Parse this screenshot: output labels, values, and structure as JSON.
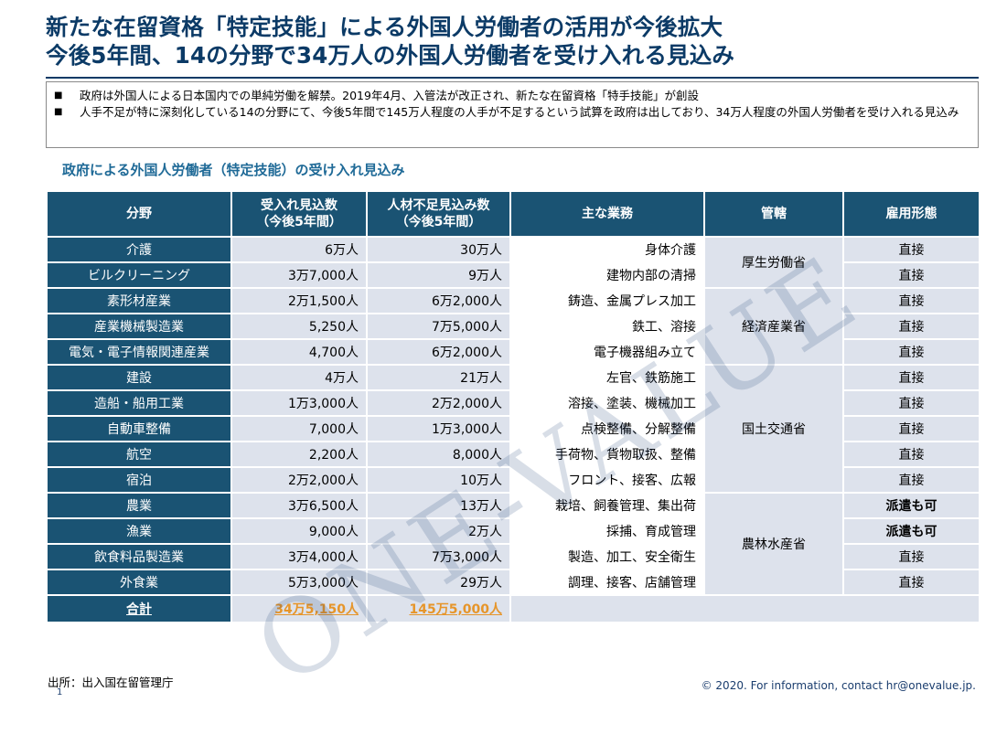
{
  "title": {
    "line1": "新たな在留資格「特定技能」による外国人労働者の活用が今後拡大",
    "line2": "今後5年間、14の分野で34万人の外国人労働者を受け入れる見込み"
  },
  "bullets": [
    {
      "marker": "■",
      "text": "政府は外国人による日本国内での単純労働を解禁。2019年4月、入管法が改正され、新たな在留資格「特手技能」が創設"
    },
    {
      "marker": "■",
      "text": "人手不足が特に深刻化している14の分野にて、今後5年間で145万人程度の人手が不足するという試算を政府は出しており、34万人程度の外国人労働者を受け入れる見込み"
    }
  ],
  "table_title": "政府による外国人労働者（特定技能）の受け入れ見込み",
  "table": {
    "headers": {
      "field": "分野",
      "accept_l1": "受入れ見込数",
      "accept_l2": "（今後5年間）",
      "shortage_l1": "人材不足見込み数",
      "shortage_l2": "（今後5年間）",
      "tasks": "主な業務",
      "jurisdiction": "管轄",
      "employment": "雇用形態"
    },
    "rows": [
      {
        "field": "介護",
        "accept": "6万人",
        "shortage": "30万人",
        "tasks": "身体介護",
        "employment": "直接"
      },
      {
        "field": "ビルクリーニング",
        "accept": "3万7,000人",
        "shortage": "9万人",
        "tasks": "建物内部の清掃",
        "employment": "直接"
      },
      {
        "field": "素形材産業",
        "accept": "2万1,500人",
        "shortage": "6万2,000人",
        "tasks": "鋳造、金属プレス加工",
        "employment": "直接"
      },
      {
        "field": "産業機械製造業",
        "accept": "5,250人",
        "shortage": "7万5,000人",
        "tasks": "鉄工、溶接",
        "employment": "直接"
      },
      {
        "field": "電気・電子情報関連産業",
        "accept": "4,700人",
        "shortage": "6万2,000人",
        "tasks": "電子機器組み立て",
        "employment": "直接"
      },
      {
        "field": "建設",
        "accept": "4万人",
        "shortage": "21万人",
        "tasks": "左官、鉄筋施工",
        "employment": "直接"
      },
      {
        "field": "造船・船用工業",
        "accept": "1万3,000人",
        "shortage": "2万2,000人",
        "tasks": "溶接、塗装、機械加工",
        "employment": "直接"
      },
      {
        "field": "自動車整備",
        "accept": "7,000人",
        "shortage": "1万3,000人",
        "tasks": "点検整備、分解整備",
        "employment": "直接"
      },
      {
        "field": "航空",
        "accept": "2,200人",
        "shortage": "8,000人",
        "tasks": "手荷物、貨物取扱、整備",
        "employment": "直接"
      },
      {
        "field": "宿泊",
        "accept": "2万2,000人",
        "shortage": "10万人",
        "tasks": "フロント、接客、広報",
        "employment": "直接"
      },
      {
        "field": "農業",
        "accept": "3万6,500人",
        "shortage": "13万人",
        "tasks": "栽培、飼養管理、集出荷",
        "employment": "派遣も可"
      },
      {
        "field": "漁業",
        "accept": "9,000人",
        "shortage": "2万人",
        "tasks": "採捕、育成管理",
        "employment": "派遣も可"
      },
      {
        "field": "飲食料品製造業",
        "accept": "3万4,000人",
        "shortage": "7万3,000人",
        "tasks": "製造、加工、安全衛生",
        "employment": "直接"
      },
      {
        "field": "外食業",
        "accept": "5万3,000人",
        "shortage": "29万人",
        "tasks": "調理、接客、店舗管理",
        "employment": "直接"
      }
    ],
    "jurisdictions": [
      "厚生労働省",
      "経済産業省",
      "国土交通省",
      "農林水産省"
    ],
    "total": {
      "label": "合計",
      "accept": "34万5,150人",
      "shortage": "145万5,000人"
    }
  },
  "watermark": "ONE-VALUE",
  "source": "出所：出入国在留管理庁",
  "page_number": "1",
  "footer": "© 2020. For information, contact  hr@onevalue.jp.",
  "colors": {
    "title": "#0b3a66",
    "header_bg": "#1a5373",
    "cell_bg": "#dde2ec",
    "total_value": "#e6952a",
    "subhead": "#1f6a97"
  }
}
